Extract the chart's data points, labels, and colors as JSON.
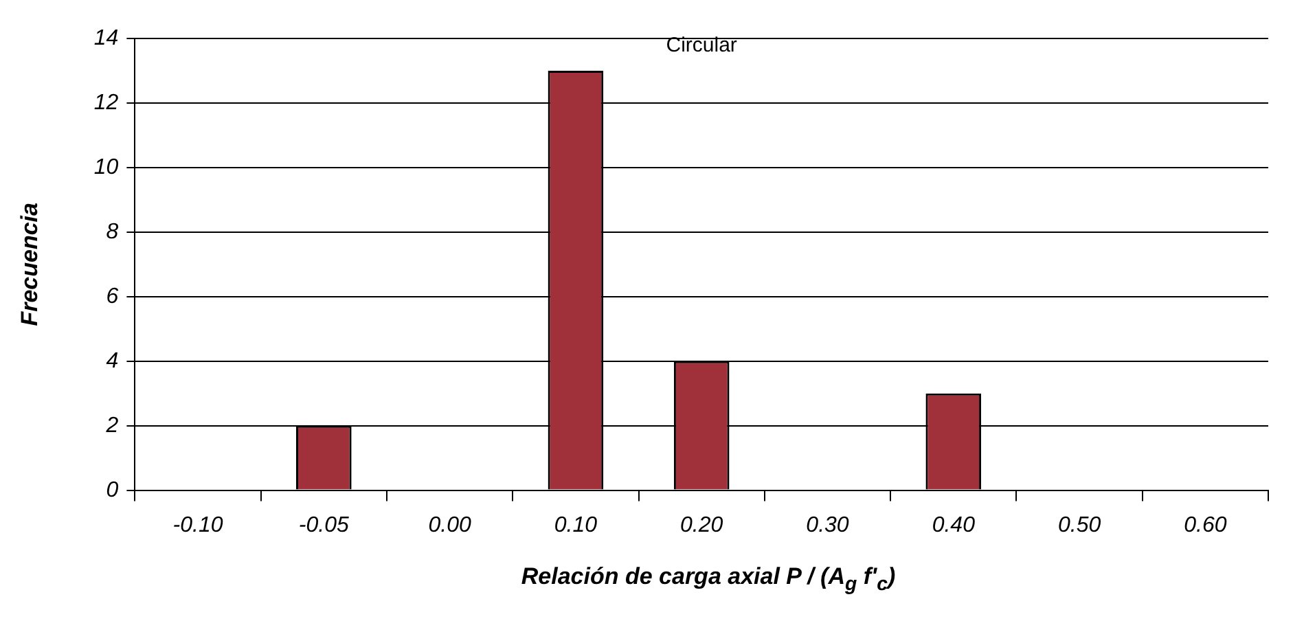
{
  "chart_data": {
    "type": "bar",
    "title": "Circular",
    "xlabel": "Relación de carga axial P / (A$_{g}$ f'$_{c}$)",
    "ylabel": "Frecuencia",
    "categories": [
      "-0.10",
      "-0.05",
      "0.00",
      "0.10",
      "0.20",
      "0.30",
      "0.40",
      "0.50",
      "0.60"
    ],
    "values": [
      0,
      2,
      0,
      13,
      4,
      0,
      3,
      0,
      0
    ],
    "color": "#a0303a",
    "ylim": [
      0,
      14
    ],
    "yticks": [
      0,
      2,
      4,
      6,
      8,
      10,
      12,
      14
    ],
    "grid": "y",
    "legend": false
  }
}
